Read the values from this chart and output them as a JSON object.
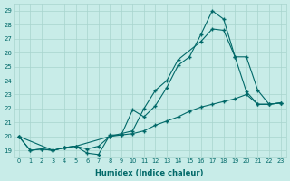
{
  "xlabel": "Humidex (Indice chaleur)",
  "bg_color": "#c8ece8",
  "grid_color": "#a8d4ce",
  "line_color": "#006868",
  "xlim": [
    -0.5,
    23.5
  ],
  "ylim": [
    18.5,
    29.5
  ],
  "yticks": [
    19,
    20,
    21,
    22,
    23,
    24,
    25,
    26,
    27,
    28,
    29
  ],
  "xticks": [
    0,
    1,
    2,
    3,
    4,
    5,
    6,
    7,
    8,
    9,
    10,
    11,
    12,
    13,
    14,
    15,
    16,
    17,
    18,
    19,
    20,
    21,
    22,
    23
  ],
  "line1_x": [
    0,
    1,
    2,
    3,
    4,
    5,
    6,
    7,
    8,
    9,
    10,
    11,
    12,
    13,
    14,
    15,
    16,
    17,
    18,
    19,
    20,
    21,
    22,
    23
  ],
  "line1_y": [
    20.0,
    19.0,
    19.1,
    19.0,
    19.2,
    19.3,
    18.8,
    18.7,
    20.1,
    20.1,
    21.9,
    21.4,
    22.2,
    23.5,
    25.1,
    25.7,
    27.3,
    29.0,
    28.4,
    25.7,
    23.2,
    22.3,
    22.3,
    22.4
  ],
  "line2_x": [
    0,
    1,
    2,
    3,
    4,
    5,
    6,
    7,
    8,
    9,
    10,
    11,
    12,
    13,
    14,
    15,
    16,
    17,
    18,
    19,
    20,
    21,
    22,
    23
  ],
  "line2_y": [
    20.0,
    19.0,
    19.1,
    19.0,
    19.2,
    19.3,
    19.1,
    19.3,
    20.0,
    20.1,
    20.2,
    20.4,
    20.8,
    21.1,
    21.4,
    21.8,
    22.1,
    22.3,
    22.5,
    22.7,
    23.0,
    22.3,
    22.3,
    22.4
  ],
  "line3_x": [
    0,
    3,
    4,
    5,
    8,
    9,
    10,
    11,
    12,
    13,
    14,
    16,
    17,
    18,
    19,
    20,
    21,
    22,
    23
  ],
  "line3_y": [
    20.0,
    19.0,
    19.2,
    19.3,
    20.0,
    20.2,
    20.4,
    22.0,
    23.3,
    24.0,
    25.5,
    26.8,
    27.7,
    27.6,
    25.7,
    25.7,
    23.3,
    22.3,
    22.4
  ]
}
